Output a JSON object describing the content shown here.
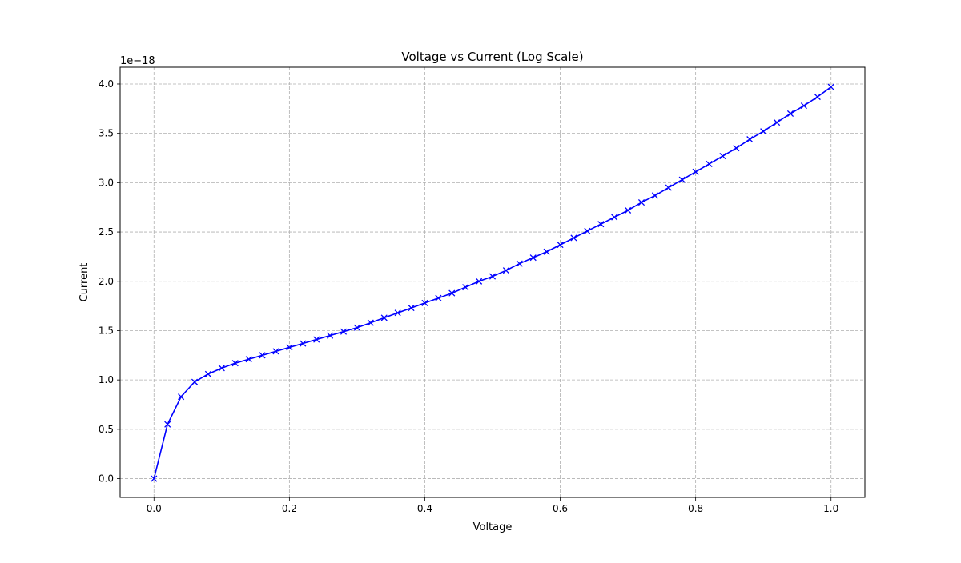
{
  "chart_data": {
    "type": "line",
    "title": "Voltage vs Current (Log Scale)",
    "xlabel": "Voltage",
    "ylabel": "Current",
    "y_offset_label": "1e−18",
    "xlim": [
      -0.05,
      1.05
    ],
    "ylim": [
      -0.19,
      4.17
    ],
    "grid": true,
    "x_ticks": [
      {
        "value": 0.0,
        "label": "0.0"
      },
      {
        "value": 0.2,
        "label": "0.2"
      },
      {
        "value": 0.4,
        "label": "0.4"
      },
      {
        "value": 0.6,
        "label": "0.6"
      },
      {
        "value": 0.8,
        "label": "0.8"
      },
      {
        "value": 1.0,
        "label": "1.0"
      }
    ],
    "y_ticks": [
      {
        "value": 0.0,
        "label": "0.0"
      },
      {
        "value": 0.5,
        "label": "0.5"
      },
      {
        "value": 1.0,
        "label": "1.0"
      },
      {
        "value": 1.5,
        "label": "1.5"
      },
      {
        "value": 2.0,
        "label": "2.0"
      },
      {
        "value": 2.5,
        "label": "2.5"
      },
      {
        "value": 3.0,
        "label": "3.0"
      },
      {
        "value": 3.5,
        "label": "3.5"
      },
      {
        "value": 4.0,
        "label": "4.0"
      }
    ],
    "series": [
      {
        "color": "#0000ff",
        "marker": "x",
        "x": [
          0.0,
          0.02,
          0.04,
          0.06,
          0.08,
          0.1,
          0.12,
          0.14,
          0.16,
          0.18,
          0.2,
          0.22,
          0.24,
          0.26,
          0.28,
          0.3,
          0.32,
          0.34,
          0.36,
          0.38,
          0.4,
          0.42,
          0.44,
          0.46,
          0.48,
          0.5,
          0.52,
          0.54,
          0.56,
          0.58,
          0.6,
          0.62,
          0.64,
          0.66,
          0.68,
          0.7,
          0.72,
          0.74,
          0.76,
          0.78,
          0.8,
          0.82,
          0.84,
          0.86,
          0.88,
          0.9,
          0.92,
          0.94,
          0.96,
          0.98,
          1.0
        ],
        "y": [
          0.0,
          0.55,
          0.83,
          0.98,
          1.06,
          1.12,
          1.17,
          1.21,
          1.25,
          1.29,
          1.33,
          1.37,
          1.41,
          1.45,
          1.49,
          1.53,
          1.58,
          1.63,
          1.68,
          1.73,
          1.78,
          1.83,
          1.88,
          1.94,
          2.0,
          2.05,
          2.11,
          2.18,
          2.24,
          2.3,
          2.37,
          2.44,
          2.51,
          2.58,
          2.65,
          2.72,
          2.8,
          2.87,
          2.95,
          3.03,
          3.11,
          3.19,
          3.27,
          3.35,
          3.44,
          3.52,
          3.61,
          3.7,
          3.78,
          3.87,
          3.97
        ]
      }
    ]
  }
}
